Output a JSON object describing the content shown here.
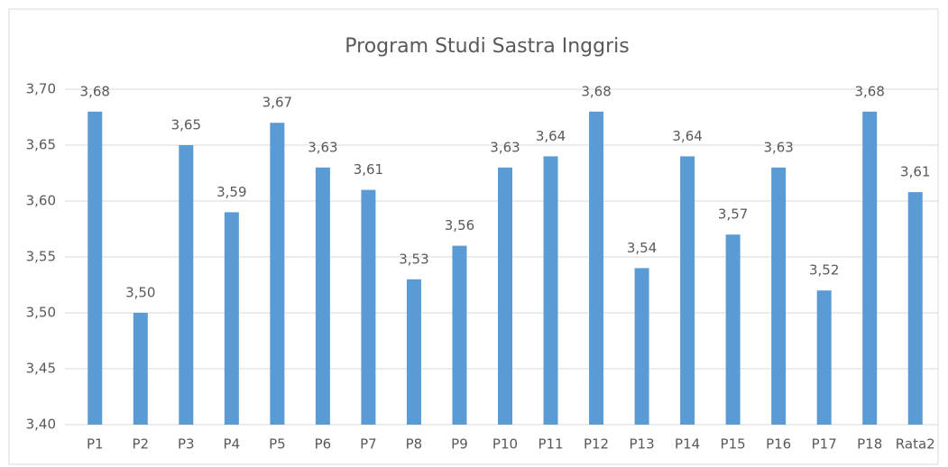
{
  "chart_data": {
    "type": "bar",
    "title": "Program Studi Sastra Inggris",
    "categories": [
      "P1",
      "P2",
      "P3",
      "P4",
      "P5",
      "P6",
      "P7",
      "P8",
      "P9",
      "P10",
      "P11",
      "P12",
      "P13",
      "P14",
      "P15",
      "P16",
      "P17",
      "P18",
      "Rata2"
    ],
    "values": [
      3.68,
      3.5,
      3.65,
      3.59,
      3.67,
      3.63,
      3.61,
      3.53,
      3.56,
      3.63,
      3.64,
      3.68,
      3.54,
      3.64,
      3.57,
      3.63,
      3.52,
      3.68,
      3.608
    ],
    "value_labels": [
      "3,68",
      "3,50",
      "3,65",
      "3,59",
      "3,67",
      "3,63",
      "3,61",
      "3,53",
      "3,56",
      "3,63",
      "3,64",
      "3,68",
      "3,54",
      "3,64",
      "3,57",
      "3,63",
      "3,52",
      "3,68",
      "3,61"
    ],
    "color": "#5b9bd5",
    "ylim": [
      3.4,
      3.7
    ],
    "yticks": [
      {
        "value": 3.4,
        "label": "3,40"
      },
      {
        "value": 3.45,
        "label": "3,45"
      },
      {
        "value": 3.5,
        "label": "3,50"
      },
      {
        "value": 3.55,
        "label": "3,55"
      },
      {
        "value": 3.6,
        "label": "3,60"
      },
      {
        "value": 3.65,
        "label": "3,65"
      },
      {
        "value": 3.7,
        "label": "3,70"
      }
    ],
    "grid": true
  }
}
